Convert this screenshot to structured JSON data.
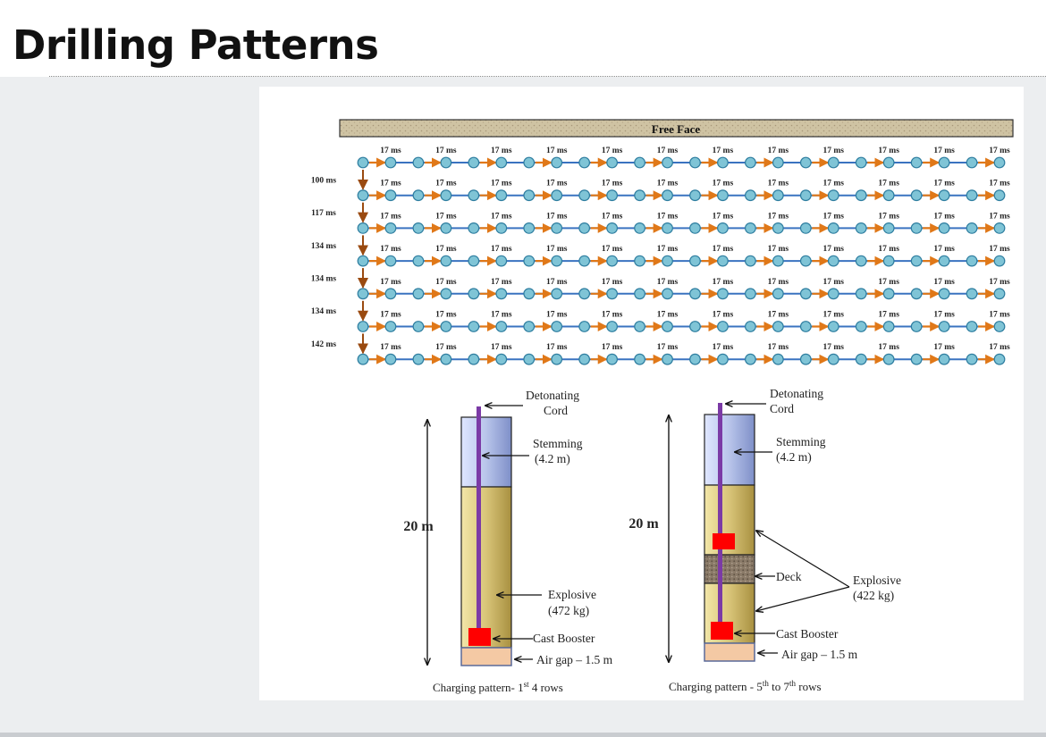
{
  "slide": {
    "title": "Drilling Patterns"
  },
  "delay_pattern": {
    "free_face_label": "Free Face",
    "row_delays": [
      "17 ms",
      "17 ms",
      "17 ms",
      "17 ms",
      "17 ms",
      "17 ms",
      "17 ms",
      "17 ms",
      "17 ms",
      "17 ms",
      "17 ms",
      "17 ms"
    ],
    "row_count": 7,
    "holes_per_row": 24,
    "inter_row_delays": [
      "100 ms",
      "117 ms",
      "134 ms",
      "134 ms",
      "134 ms",
      "142 ms"
    ],
    "colors": {
      "hole_fill": "#7fc4d6",
      "hole_stroke": "#2f7ea0",
      "line": "#3a73c0",
      "arrow": "#e07818",
      "inter_row_arrow": "#9a4a10",
      "free_face_fill": "#cfc3a3"
    }
  },
  "charge_left": {
    "length_label": "20 m",
    "detonating_cord": "Detonating Cord",
    "stemming": "Stemming (4.2 m)",
    "explosive": "Explosive (472 kg)",
    "cast_booster": "Cast Booster",
    "air_gap": "Air gap – 1.5 m",
    "caption_main": "Charging pattern- 1",
    "caption_sup": "st",
    "caption_end": " 4 rows"
  },
  "charge_right": {
    "length_label": "20 m",
    "detonating_cord": "Detonating Cord",
    "stemming": "Stemming (4.2 m)",
    "deck": "Deck",
    "explosive": "Explosive (422 kg)",
    "cast_booster": "Cast Booster",
    "air_gap": "Air gap – 1.5 m",
    "caption_main": "Charging pattern - 5",
    "caption_sup": "th",
    "caption_mid": " to 7",
    "caption_sup2": "th",
    "caption_end": " rows"
  },
  "colors": {
    "stemming": "#b8c4ea",
    "explosive": "#d8c478",
    "deck": "#8a7a68",
    "booster": "#ff0000",
    "cord": "#7b3aa6",
    "air_gap": "#f4c9a4"
  }
}
